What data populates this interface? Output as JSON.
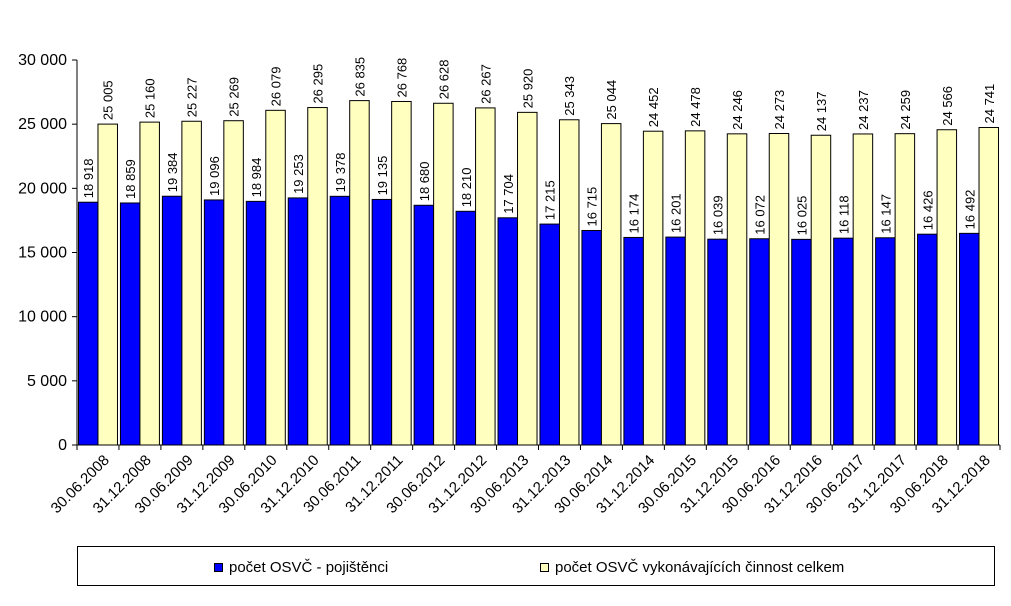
{
  "chart_data": {
    "type": "bar",
    "categories": [
      "30.06.2008",
      "31.12.2008",
      "30.06.2009",
      "31.12.2009",
      "30.06.2010",
      "31.12.2010",
      "30.06.2011",
      "31.12.2011",
      "30.06.2012",
      "31.12.2012",
      "30.06.2013",
      "31.12.2013",
      "30.06.2014",
      "31.12.2014",
      "30.06.2015",
      "31.12.2015",
      "30.06.2016",
      "31.12.2016",
      "30.06.2017",
      "31.12.2017",
      "30.06.2018",
      "31.12.2018"
    ],
    "series": [
      {
        "name": "počet OSVČ - pojištěnci",
        "color": "#0000ff",
        "values": [
          18918,
          18859,
          19384,
          19096,
          18984,
          19253,
          19378,
          19135,
          18680,
          18210,
          17704,
          17215,
          16715,
          16174,
          16201,
          16039,
          16072,
          16025,
          16118,
          16147,
          16426,
          16492
        ],
        "labels": [
          "18 918",
          "18 859",
          "19 384",
          "19 096",
          "18 984",
          "19 253",
          "19 378",
          "19 135",
          "18 680",
          "18 210",
          "17 704",
          "17 215",
          "16 715",
          "16 174",
          "16 201",
          "16 039",
          "16 072",
          "16 025",
          "16 118",
          "16 147",
          "16 426",
          "16 492"
        ]
      },
      {
        "name": "počet OSVČ vykonávajících činnost celkem",
        "color": "#ffffc0",
        "values": [
          25005,
          25160,
          25227,
          25269,
          26079,
          26295,
          26835,
          26768,
          26628,
          26267,
          25920,
          25343,
          25044,
          24452,
          24478,
          24246,
          24273,
          24137,
          24237,
          24259,
          24566,
          24741
        ],
        "labels": [
          "25 005",
          "25 160",
          "25 227",
          "25 269",
          "26 079",
          "26 295",
          "26 835",
          "26 768",
          "26 628",
          "26 267",
          "25 920",
          "25 343",
          "25 044",
          "24 452",
          "24 478",
          "24 246",
          "24 273",
          "24 137",
          "24 237",
          "24 259",
          "24 566",
          "24 741"
        ]
      }
    ],
    "ylim": [
      0,
      30000
    ],
    "yticks": [
      0,
      5000,
      10000,
      15000,
      20000,
      25000,
      30000
    ],
    "ytick_labels": [
      "0",
      "5 000",
      "10 000",
      "15 000",
      "20 000",
      "25 000",
      "30 000"
    ],
    "legend_position": "bottom",
    "grid": false
  }
}
